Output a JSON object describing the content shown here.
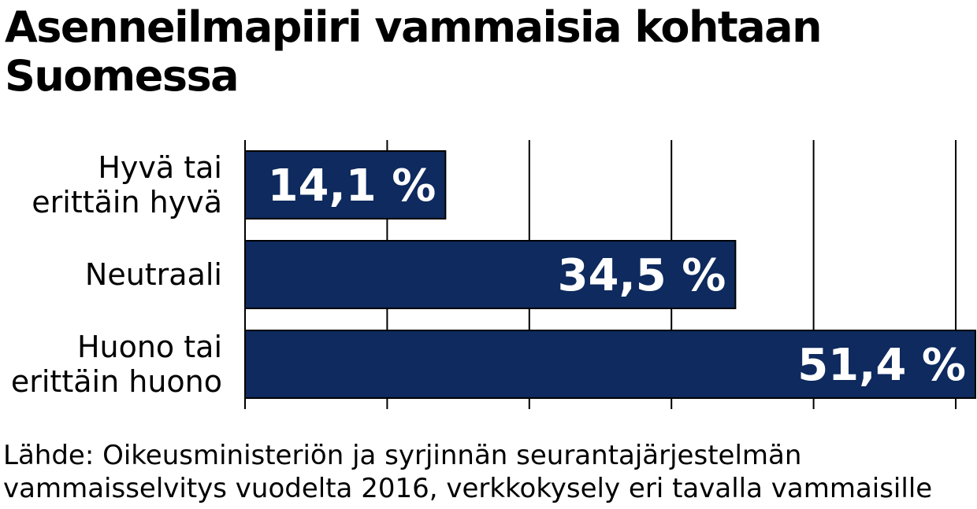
{
  "chart_data": {
    "type": "bar",
    "orientation": "horizontal",
    "title": "Asenneilmapiiri vammaisia kohtaan Suomessa",
    "categories": [
      [
        "Hyvä tai",
        "erittäin hyvä"
      ],
      [
        "Neutraali"
      ],
      [
        "Huono tai",
        "erittäin huono"
      ]
    ],
    "values": [
      14.1,
      34.5,
      51.4
    ],
    "value_labels": [
      "14,1 %",
      "34,5 %",
      "51,4 %"
    ],
    "xlim": [
      0,
      50
    ],
    "grid": true,
    "bar_color": "#0e2a5e",
    "source_lines": [
      "Lähde: Oikeusministeriön ja syrjinnän seurantajärjestelmän",
      "vammaisselvitys vuodelta 2016, verkkokysely eri tavalla vammaisille"
    ]
  }
}
